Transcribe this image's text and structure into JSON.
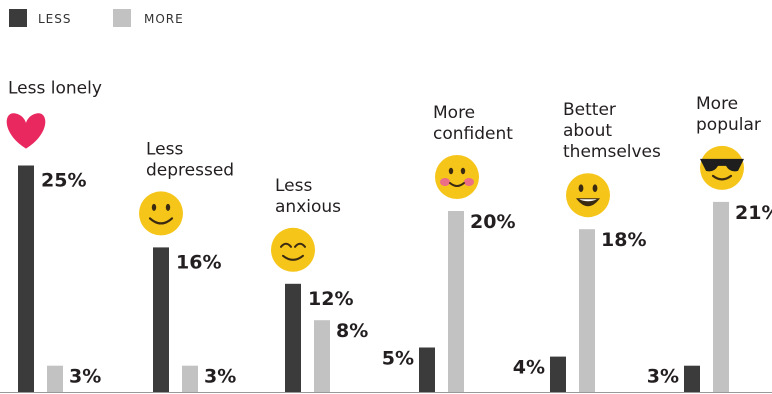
{
  "chart_data": {
    "type": "bar",
    "legend": {
      "placement": "top-left",
      "entries": [
        {
          "key": "less",
          "label": "LESS",
          "color": "#3b3b3b"
        },
        {
          "key": "more",
          "label": "MORE",
          "color": "#c2c2c2"
        }
      ]
    },
    "value_suffix": "%",
    "ylim": [
      0,
      25
    ],
    "grid": false,
    "categories": [
      {
        "lines": [
          "Less lonely"
        ],
        "icon": "heart-icon",
        "less": 25,
        "more": 3
      },
      {
        "lines": [
          "Less",
          "depressed"
        ],
        "icon": "smiley-icon",
        "less": 16,
        "more": 3
      },
      {
        "lines": [
          "Less",
          "anxious"
        ],
        "icon": "relieved-face-icon",
        "less": 12,
        "more": 8
      },
      {
        "lines": [
          "More",
          "confident"
        ],
        "icon": "blushing-face-icon",
        "less": 5,
        "more": 20
      },
      {
        "lines": [
          "Better",
          "about",
          "themselves"
        ],
        "icon": "grinning-face-icon",
        "less": 4,
        "more": 18
      },
      {
        "lines": [
          "More",
          "popular"
        ],
        "icon": "sunglasses-face-icon",
        "less": 3,
        "more": 21
      }
    ],
    "colors": {
      "less": "#3b3b3b",
      "more": "#c2c2c2",
      "emoji": "#f6c51a",
      "heart": "#e8285e",
      "axis": "#999999"
    }
  }
}
